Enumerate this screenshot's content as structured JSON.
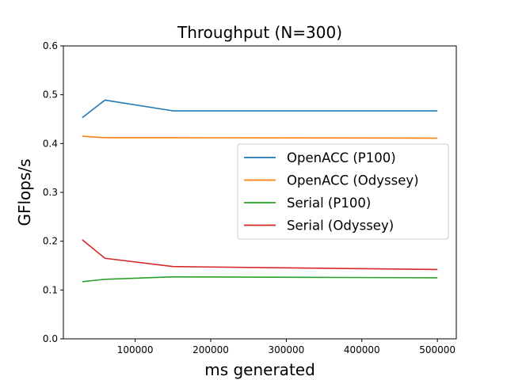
{
  "chart_data": {
    "type": "line",
    "title": "Throughput (N=300)",
    "xlabel": "ms generated",
    "ylabel": "GFlops/s",
    "xlim": [
      5000,
      525000
    ],
    "ylim": [
      0,
      0.6
    ],
    "xticks": [
      100000,
      200000,
      300000,
      400000,
      500000
    ],
    "xtick_labels": [
      "100000",
      "200000",
      "300000",
      "400000",
      "500000"
    ],
    "yticks": [
      0.0,
      0.1,
      0.2,
      0.3,
      0.4,
      0.5,
      0.6
    ],
    "ytick_labels": [
      "0.0",
      "0.1",
      "0.2",
      "0.3",
      "0.4",
      "0.5",
      "0.6"
    ],
    "grid": false,
    "legend_position": "center-right",
    "x": [
      30000,
      60000,
      150000,
      500000
    ],
    "series": [
      {
        "name": "OpenACC (P100)",
        "color": "#1f77b4",
        "values": [
          0.453,
          0.489,
          0.467,
          0.467
        ]
      },
      {
        "name": "OpenACC (Odyssey)",
        "color": "#ff7f0e",
        "values": [
          0.415,
          0.412,
          0.412,
          0.411
        ]
      },
      {
        "name": "Serial (P100)",
        "color": "#2ca02c",
        "values": [
          0.117,
          0.122,
          0.127,
          0.125
        ]
      },
      {
        "name": "Serial (Odyssey)",
        "color": "#d62728",
        "values": [
          0.203,
          0.165,
          0.148,
          0.142
        ]
      }
    ]
  }
}
